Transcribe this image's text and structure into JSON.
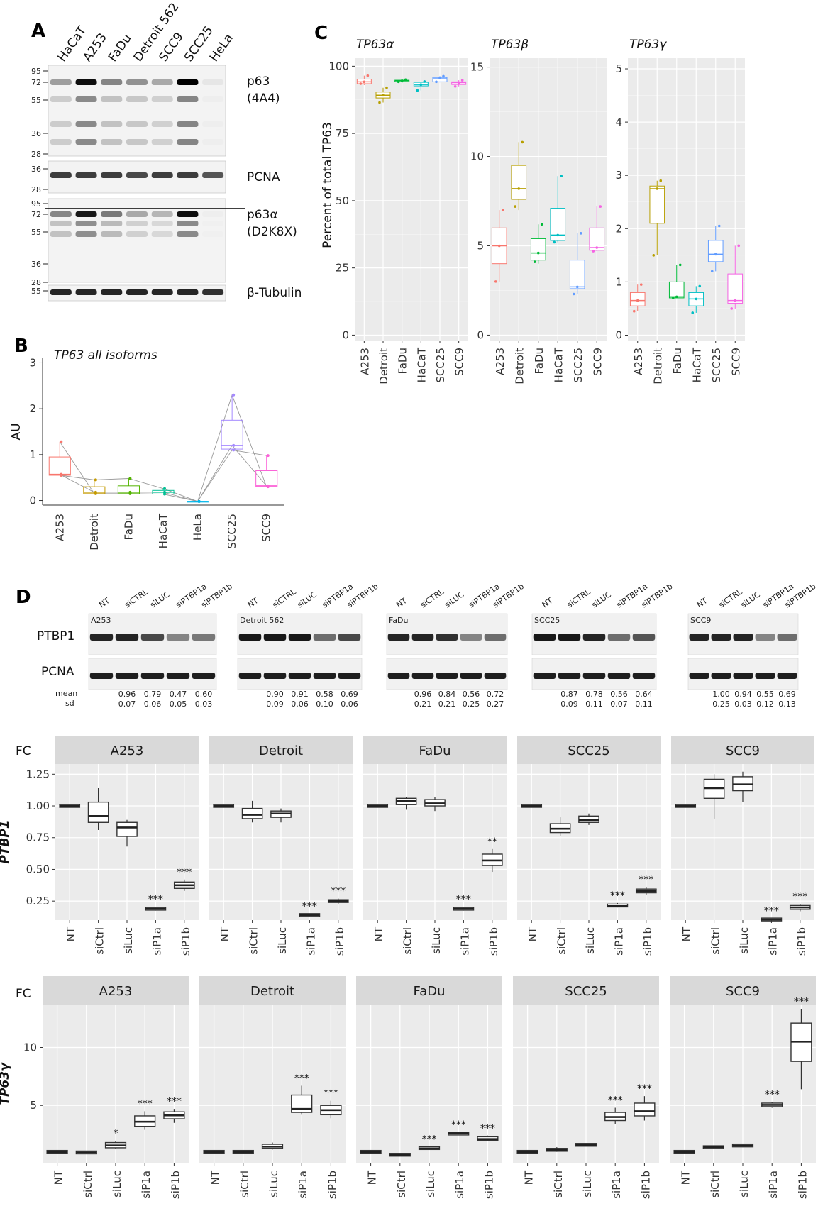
{
  "panel_letters": {
    "a": "A",
    "b": "B",
    "c": "C",
    "d": "D"
  },
  "blot_a": {
    "lanes": [
      "HaCaT",
      "A253",
      "FaDu",
      "Detroit 562",
      "SCC9",
      "SCC25",
      "HeLa"
    ],
    "blocks": [
      {
        "label": "p63\n(4A4)",
        "markers": [
          "95",
          "72",
          "55",
          "36",
          "28"
        ]
      },
      {
        "label": "PCNA",
        "markers": [
          "36",
          "28"
        ]
      },
      {
        "label": "p63α\n(D2K8X)",
        "markers": [
          "95",
          "72",
          "55",
          "36",
          "28"
        ]
      },
      {
        "label": "β-Tubulin",
        "markers": [
          "55"
        ]
      }
    ]
  },
  "blot_d": {
    "lanes": [
      "NT",
      "siCTRL",
      "siLUC",
      "siPTBP1a",
      "siPTBP1b"
    ],
    "row_labels": [
      "PTBP1",
      "PCNA"
    ],
    "stat_labels": [
      "mean",
      "sd"
    ],
    "panels": [
      {
        "name": "A253",
        "mean": [
          "0.96",
          "0.79",
          "0.47",
          "0.60"
        ],
        "sd": [
          "0.07",
          "0.06",
          "0.05",
          "0.03"
        ]
      },
      {
        "name": "Detroit 562",
        "mean": [
          "0.90",
          "0.91",
          "0.58",
          "0.69"
        ],
        "sd": [
          "0.09",
          "0.06",
          "0.10",
          "0.06"
        ]
      },
      {
        "name": "FaDu",
        "mean": [
          "0.96",
          "0.84",
          "0.56",
          "0.72"
        ],
        "sd": [
          "0.21",
          "0.21",
          "0.25",
          "0.27"
        ]
      },
      {
        "name": "SCC25",
        "mean": [
          "0.87",
          "0.78",
          "0.56",
          "0.64"
        ],
        "sd": [
          "0.09",
          "0.11",
          "0.07",
          "0.11"
        ]
      },
      {
        "name": "SCC9",
        "mean": [
          "1.00",
          "0.94",
          "0.55",
          "0.69"
        ],
        "sd": [
          "0.25",
          "0.03",
          "0.12",
          "0.13"
        ]
      }
    ]
  },
  "chart_data": [
    {
      "id": "B",
      "type": "box",
      "title": "TP63 all isoforms",
      "ylabel": "AU",
      "categories": [
        "A253",
        "Detroit",
        "FaDu",
        "HaCaT",
        "HeLa",
        "SCC25",
        "SCC9"
      ],
      "colors": [
        "#F8766D",
        "#C49A00",
        "#53B400",
        "#00C094",
        "#00B6EB",
        "#A58AFF",
        "#FB61D7"
      ],
      "ylim": [
        -0.1,
        3.1
      ],
      "yticks": [
        0,
        1,
        2,
        3
      ],
      "boxes": [
        {
          "min": 0.55,
          "q1": 0.55,
          "med": 0.57,
          "q3": 0.95,
          "max": 1.28
        },
        {
          "min": 0.15,
          "q1": 0.15,
          "med": 0.18,
          "q3": 0.3,
          "max": 0.45
        },
        {
          "min": 0.15,
          "q1": 0.15,
          "med": 0.18,
          "q3": 0.32,
          "max": 0.48
        },
        {
          "min": 0.14,
          "q1": 0.14,
          "med": 0.18,
          "q3": 0.22,
          "max": 0.26
        },
        {
          "min": -0.02,
          "q1": -0.02,
          "med": -0.02,
          "q3": -0.02,
          "max": -0.02
        },
        {
          "min": 1.1,
          "q1": 1.12,
          "med": 1.2,
          "q3": 1.75,
          "max": 2.3
        },
        {
          "min": 0.3,
          "q1": 0.3,
          "med": 0.32,
          "q3": 0.65,
          "max": 0.98
        }
      ],
      "points": [
        [
          0.55,
          0.57,
          1.28
        ],
        [
          0.15,
          0.18,
          0.45
        ],
        [
          0.15,
          0.18,
          0.48
        ],
        [
          0.14,
          0.18,
          0.26
        ],
        [
          -0.02,
          -0.02,
          -0.02
        ],
        [
          1.1,
          1.2,
          2.3
        ],
        [
          0.3,
          0.32,
          0.98
        ]
      ],
      "replicate_lines": [
        [
          0.57,
          0.18,
          0.18,
          0.18,
          -0.02,
          1.2,
          0.32
        ],
        [
          0.55,
          0.45,
          0.48,
          0.26,
          -0.02,
          2.3,
          0.3
        ],
        [
          1.28,
          0.15,
          0.15,
          0.14,
          -0.02,
          1.1,
          0.98
        ]
      ]
    },
    {
      "id": "C",
      "type": "box",
      "ylabel": "Percent of total TP63",
      "categories": [
        "A253",
        "Detroit",
        "FaDu",
        "HaCaT",
        "SCC25",
        "SCC9"
      ],
      "colors": [
        "#F8766D",
        "#B79F00",
        "#00BA38",
        "#00BFC4",
        "#619CFF",
        "#F564E3"
      ],
      "facets": [
        {
          "title": "TP63α",
          "ylim": [
            -2,
            103
          ],
          "yticks": [
            0,
            25,
            50,
            75,
            100
          ],
          "boxes": [
            {
              "min": 93,
              "q1": 93.5,
              "med": 94.2,
              "q3": 95.2,
              "max": 96.5
            },
            {
              "min": 86.5,
              "q1": 88.2,
              "med": 89.2,
              "q3": 90.4,
              "max": 92
            },
            {
              "min": 93.8,
              "q1": 94.2,
              "med": 94.6,
              "q3": 94.8,
              "max": 95
            },
            {
              "min": 91,
              "q1": 92.7,
              "med": 93.2,
              "q3": 94,
              "max": 94.3
            },
            {
              "min": 94,
              "q1": 94.2,
              "med": 95.6,
              "q3": 96,
              "max": 96.3
            },
            {
              "min": 92.5,
              "q1": 93.2,
              "med": 93.9,
              "q3": 94.2,
              "max": 94.8
            }
          ],
          "points": [
            [
              93.5,
              94.2,
              96.5
            ],
            [
              86.5,
              89.2,
              92
            ],
            [
              94.2,
              94.6,
              95
            ],
            [
              91,
              93.2,
              94.3
            ],
            [
              94.2,
              95.6,
              96.3
            ],
            [
              92.5,
              93.9,
              94.8
            ]
          ]
        },
        {
          "title": "TP63β",
          "ylim": [
            -0.3,
            15.5
          ],
          "yticks": [
            0,
            5,
            10,
            15
          ],
          "boxes": [
            {
              "min": 3,
              "q1": 4,
              "med": 5,
              "q3": 6,
              "max": 7
            },
            {
              "min": 7,
              "q1": 7.6,
              "med": 8.2,
              "q3": 9.5,
              "max": 10.8
            },
            {
              "min": 4,
              "q1": 4.2,
              "med": 4.6,
              "q3": 5.4,
              "max": 6.2
            },
            {
              "min": 5.2,
              "q1": 5.3,
              "med": 5.6,
              "q3": 7.1,
              "max": 8.9
            },
            {
              "min": 2.3,
              "q1": 2.6,
              "med": 2.7,
              "q3": 4.2,
              "max": 5.7
            },
            {
              "min": 4.7,
              "q1": 4.75,
              "med": 4.9,
              "q3": 6,
              "max": 7.2
            }
          ],
          "points": [
            [
              3,
              5,
              7
            ],
            [
              7.2,
              8.2,
              10.8
            ],
            [
              4.1,
              4.6,
              6.2
            ],
            [
              5.2,
              5.6,
              8.9
            ],
            [
              2.3,
              2.7,
              5.7
            ],
            [
              4.7,
              4.9,
              7.2
            ]
          ]
        },
        {
          "title": "TP63γ",
          "ylim": [
            -0.1,
            5.2
          ],
          "yticks": [
            0,
            1,
            2,
            3,
            4,
            5
          ],
          "boxes": [
            {
              "min": 0.45,
              "q1": 0.55,
              "med": 0.65,
              "q3": 0.8,
              "max": 0.95
            },
            {
              "min": 1.5,
              "q1": 2.1,
              "med": 2.75,
              "q3": 2.8,
              "max": 2.9
            },
            {
              "min": 0.7,
              "q1": 0.7,
              "med": 0.72,
              "q3": 1,
              "max": 1.32
            },
            {
              "min": 0.42,
              "q1": 0.55,
              "med": 0.68,
              "q3": 0.8,
              "max": 0.92
            },
            {
              "min": 1.2,
              "q1": 1.38,
              "med": 1.52,
              "q3": 1.78,
              "max": 2.05
            },
            {
              "min": 0.5,
              "q1": 0.6,
              "med": 0.65,
              "q3": 1.15,
              "max": 1.68
            }
          ],
          "points": [
            [
              0.45,
              0.65,
              0.95
            ],
            [
              1.5,
              2.75,
              2.9
            ],
            [
              0.7,
              0.72,
              1.32
            ],
            [
              0.42,
              0.68,
              0.92
            ],
            [
              1.2,
              1.52,
              2.05
            ],
            [
              0.5,
              0.65,
              1.68
            ]
          ]
        }
      ]
    },
    {
      "id": "D-PTBP1",
      "type": "box",
      "ylabel": "PTBP1",
      "corner_label": "FC",
      "categories": [
        "NT",
        "siCtrl",
        "siLuc",
        "siP1a",
        "siP1b"
      ],
      "ylim": [
        0.1,
        1.33
      ],
      "yticks": [
        0.25,
        0.5,
        0.75,
        1.0,
        1.25
      ],
      "ytick_labels": [
        "0.25",
        "0.50",
        "0.75",
        "1.00",
        "1.25"
      ],
      "facets": [
        {
          "title": "A253",
          "boxes": [
            [
              1,
              1,
              1,
              1,
              1
            ],
            [
              0.81,
              0.87,
              0.92,
              1.03,
              1.14
            ],
            [
              0.68,
              0.76,
              0.83,
              0.87,
              0.89
            ],
            [
              0.175,
              0.18,
              0.19,
              0.2,
              0.205
            ],
            [
              0.33,
              0.35,
              0.375,
              0.4,
              0.42
            ]
          ],
          "sig": [
            "",
            "",
            "",
            "***",
            "***"
          ]
        },
        {
          "title": "Detroit",
          "boxes": [
            [
              1,
              1,
              1,
              1,
              1
            ],
            [
              0.87,
              0.9,
              0.93,
              0.98,
              1.04
            ],
            [
              0.87,
              0.91,
              0.94,
              0.96,
              0.98
            ],
            [
              0.13,
              0.135,
              0.14,
              0.145,
              0.15
            ],
            [
              0.23,
              0.24,
              0.25,
              0.26,
              0.27
            ]
          ],
          "sig": [
            "",
            "",
            "",
            "***",
            "***"
          ]
        },
        {
          "title": "FaDu",
          "boxes": [
            [
              1,
              1,
              1,
              1,
              1
            ],
            [
              0.97,
              1.01,
              1.04,
              1.06,
              1.07
            ],
            [
              0.96,
              1.0,
              1.02,
              1.05,
              1.07
            ],
            [
              0.175,
              0.18,
              0.19,
              0.2,
              0.205
            ],
            [
              0.48,
              0.53,
              0.57,
              0.62,
              0.66
            ]
          ],
          "sig": [
            "",
            "",
            "",
            "***",
            "**"
          ]
        },
        {
          "title": "SCC25",
          "boxes": [
            [
              1,
              1,
              1,
              1,
              1
            ],
            [
              0.76,
              0.79,
              0.82,
              0.86,
              0.91
            ],
            [
              0.85,
              0.87,
              0.89,
              0.92,
              0.94
            ],
            [
              0.2,
              0.205,
              0.21,
              0.225,
              0.235
            ],
            [
              0.3,
              0.315,
              0.33,
              0.345,
              0.36
            ]
          ],
          "sig": [
            "",
            "",
            "",
            "***",
            "***"
          ]
        },
        {
          "title": "SCC9",
          "boxes": [
            [
              1,
              1,
              1,
              1,
              1
            ],
            [
              0.9,
              1.06,
              1.14,
              1.21,
              1.25
            ],
            [
              1.03,
              1.12,
              1.17,
              1.23,
              1.27
            ],
            [
              0.095,
              0.1,
              0.105,
              0.11,
              0.115
            ],
            [
              0.17,
              0.185,
              0.2,
              0.215,
              0.225
            ]
          ],
          "sig": [
            "",
            "",
            "",
            "***",
            "***"
          ]
        }
      ]
    },
    {
      "id": "D-TP63g",
      "type": "box",
      "ylabel": "TP63γ",
      "corner_label": "FC",
      "categories": [
        "NT",
        "siCtrl",
        "siLuc",
        "siP1a",
        "siP1b"
      ],
      "ylim": [
        0,
        13.7
      ],
      "yticks": [
        5,
        10
      ],
      "ytick_labels": [
        "5",
        "10"
      ],
      "facets": [
        {
          "title": "A253",
          "boxes": [
            [
              1,
              1,
              1,
              1,
              1
            ],
            [
              0.8,
              0.85,
              0.95,
              1.05,
              1.1
            ],
            [
              1.25,
              1.35,
              1.55,
              1.8,
              1.95
            ],
            [
              2.9,
              3.2,
              3.6,
              4.1,
              4.5
            ],
            [
              3.5,
              3.85,
              4.15,
              4.45,
              4.7
            ]
          ],
          "sig": [
            "",
            "",
            "*",
            "***",
            "***"
          ]
        },
        {
          "title": "Detroit",
          "boxes": [
            [
              1,
              1,
              1,
              1,
              1
            ],
            [
              1,
              1,
              1,
              1,
              1
            ],
            [
              1.2,
              1.3,
              1.45,
              1.65,
              1.8
            ],
            [
              4.2,
              4.4,
              4.7,
              5.9,
              6.7
            ],
            [
              3.9,
              4.2,
              4.6,
              5.0,
              5.4
            ]
          ],
          "sig": [
            "",
            "",
            "",
            "***",
            "***"
          ]
        },
        {
          "title": "FaDu",
          "boxes": [
            [
              1,
              1,
              1,
              1,
              1
            ],
            [
              0.7,
              0.72,
              0.75,
              0.78,
              0.8
            ],
            [
              1.2,
              1.25,
              1.3,
              1.4,
              1.45
            ],
            [
              2.45,
              2.5,
              2.6,
              2.65,
              2.7
            ],
            [
              1.9,
              2.0,
              2.1,
              2.3,
              2.4
            ]
          ],
          "sig": [
            "",
            "",
            "***",
            "***",
            "***"
          ]
        },
        {
          "title": "SCC25",
          "boxes": [
            [
              1,
              1,
              1,
              1,
              1
            ],
            [
              1.0,
              1.05,
              1.15,
              1.3,
              1.4
            ],
            [
              1.55,
              1.58,
              1.6,
              1.63,
              1.65
            ],
            [
              3.4,
              3.7,
              4.0,
              4.4,
              4.8
            ],
            [
              3.7,
              4.1,
              4.5,
              5.2,
              5.8
            ]
          ],
          "sig": [
            "",
            "",
            "",
            "***",
            "***"
          ]
        },
        {
          "title": "SCC9",
          "boxes": [
            [
              1,
              1,
              1,
              1,
              1
            ],
            [
              1.3,
              1.35,
              1.4,
              1.45,
              1.5
            ],
            [
              1.4,
              1.45,
              1.55,
              1.65,
              1.7
            ],
            [
              4.8,
              4.9,
              5.05,
              5.2,
              5.3
            ],
            [
              6.4,
              8.8,
              10.5,
              12.1,
              13.3
            ]
          ],
          "sig": [
            "",
            "",
            "",
            "***",
            "***"
          ]
        }
      ]
    }
  ]
}
